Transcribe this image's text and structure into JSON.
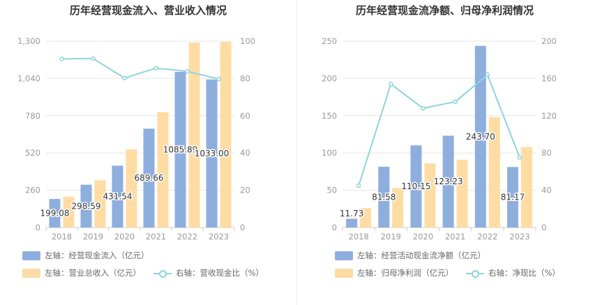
{
  "colors": {
    "bar1": "#8eaedd",
    "bar2": "#fedca4",
    "line": "#8dd4dd",
    "grid": "#e6e6e6",
    "axis": "#999999"
  },
  "charts": [
    {
      "title": "历年经营现金流入、营业收入情况",
      "legend": {
        "bar1": "左轴：经营现金流入（亿元）",
        "bar2": "左轴：营业总收入（亿元）",
        "line": "右轴：营收现金比（%）"
      }
    },
    {
      "title": "历年经营现金流净额、归母净利润情况",
      "legend": {
        "bar1": "左轴：经营活动现金流净额（亿元）",
        "bar2": "左轴：归母净利润（亿元）",
        "line": "右轴：净现比（%）"
      }
    }
  ],
  "chart_data": [
    {
      "type": "bar",
      "categories": [
        "2018",
        "2019",
        "2020",
        "2021",
        "2022",
        "2023"
      ],
      "y_left": {
        "min": 0,
        "max": 1300,
        "ticks": [
          "0",
          "260",
          "520",
          "780",
          "1,040",
          "1,300"
        ]
      },
      "y_right": {
        "min": 0,
        "max": 100,
        "ticks": [
          "0",
          "20",
          "40",
          "60",
          "80",
          "100"
        ]
      },
      "series": [
        {
          "name": "左轴：经营现金流入（亿元）",
          "axis": "left",
          "type": "bar",
          "values": [
            199.08,
            298.59,
            431.54,
            689.66,
            1085.89,
            1033.0
          ],
          "labels": [
            "199.08",
            "298.59",
            "431.54",
            "689.66",
            "1085.89",
            "1033.00"
          ]
        },
        {
          "name": "左轴：营业总收入（亿元）",
          "axis": "left",
          "type": "bar",
          "values": [
            215,
            330,
            545,
            805,
            1290,
            1295
          ]
        },
        {
          "name": "右轴：营收现金比（%）",
          "axis": "right",
          "type": "line",
          "values": [
            90.5,
            90.7,
            80.2,
            85.5,
            83.8,
            79.7
          ]
        }
      ]
    },
    {
      "type": "bar",
      "categories": [
        "2018",
        "2019",
        "2020",
        "2021",
        "2022",
        "2023"
      ],
      "y_left": {
        "min": 0,
        "max": 250,
        "ticks": [
          "0",
          "50",
          "100",
          "150",
          "200",
          "250"
        ]
      },
      "y_right": {
        "min": 0,
        "max": 200,
        "ticks": [
          "0",
          "40",
          "80",
          "120",
          "160",
          "200"
        ]
      },
      "series": [
        {
          "name": "左轴：经营活动现金流净额（亿元）",
          "axis": "left",
          "type": "bar",
          "values": [
            11.73,
            81.58,
            110.15,
            123.23,
            243.7,
            81.17
          ],
          "labels": [
            "11.73",
            "81.58",
            "110.15",
            "123.23",
            "243.70",
            "81.17"
          ]
        },
        {
          "name": "左轴：归母净利润（亿元）",
          "axis": "left",
          "type": "bar",
          "values": [
            26,
            53,
            86,
            91,
            148,
            108
          ]
        },
        {
          "name": "右轴：净现比（%）",
          "axis": "right",
          "type": "line",
          "values": [
            45,
            154,
            128,
            135,
            164,
            75
          ]
        }
      ]
    }
  ]
}
